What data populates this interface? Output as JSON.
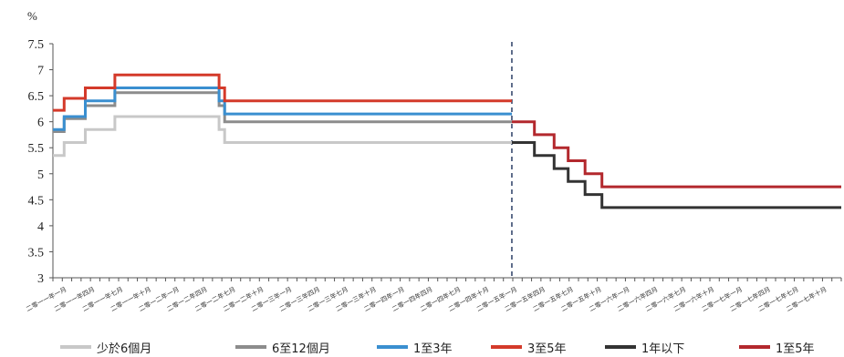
{
  "chart_data": {
    "type": "line",
    "unit_label": "%",
    "ylim": [
      3,
      7.5
    ],
    "yticks": [
      "7.5",
      "7",
      "6.5",
      "6",
      "5.5",
      "5",
      "4.5",
      "4",
      "3.5",
      "3"
    ],
    "x_labels": [
      "二零一一年一月",
      "二零一一年四月",
      "二零一一年七月",
      "二零一一年十月",
      "二零一二年一月",
      "二零一二年四月",
      "二零一二年七月",
      "二零一二年十月",
      "二零一三年一月",
      "二零一三年四月",
      "二零一三年七月",
      "二零一三年十月",
      "二零一四年一月",
      "二零一四年四月",
      "二零一四年七月",
      "二零一四年十月",
      "二零一五年一月",
      "二零一五年四月",
      "二零一五年七月",
      "二零一五年十月",
      "二零一六年一月",
      "二零一六年四月",
      "二零一六年七月",
      "二零一六年十月",
      "二零一七年一月",
      "二零一七年四月",
      "二零一七年七月",
      "二零一七年十月"
    ],
    "x_range": [
      0,
      28
    ],
    "divider_x": 16.3,
    "series": [
      {
        "name": "少於6個月",
        "color": "#c8c8c8",
        "points": [
          [
            0,
            5.35
          ],
          [
            0.4,
            5.35
          ],
          [
            0.4,
            5.6
          ],
          [
            1.15,
            5.6
          ],
          [
            1.15,
            5.85
          ],
          [
            2.2,
            5.85
          ],
          [
            2.2,
            6.1
          ],
          [
            5.9,
            6.1
          ],
          [
            5.9,
            5.85
          ],
          [
            6.1,
            5.85
          ],
          [
            6.1,
            5.6
          ],
          [
            16.3,
            5.6
          ]
        ]
      },
      {
        "name": "6至12個月",
        "color": "#8c8c8c",
        "points": [
          [
            0,
            5.81
          ],
          [
            0.4,
            5.81
          ],
          [
            0.4,
            6.06
          ],
          [
            1.15,
            6.06
          ],
          [
            1.15,
            6.31
          ],
          [
            2.2,
            6.31
          ],
          [
            2.2,
            6.56
          ],
          [
            5.9,
            6.56
          ],
          [
            5.9,
            6.31
          ],
          [
            6.1,
            6.31
          ],
          [
            6.1,
            6.0
          ],
          [
            16.3,
            6.0
          ]
        ]
      },
      {
        "name": "1至3年",
        "color": "#3a8fd0",
        "points": [
          [
            0,
            5.85
          ],
          [
            0.4,
            5.85
          ],
          [
            0.4,
            6.1
          ],
          [
            1.15,
            6.1
          ],
          [
            1.15,
            6.4
          ],
          [
            2.2,
            6.4
          ],
          [
            2.2,
            6.65
          ],
          [
            5.9,
            6.65
          ],
          [
            5.9,
            6.4
          ],
          [
            6.1,
            6.4
          ],
          [
            6.1,
            6.15
          ],
          [
            16.3,
            6.15
          ]
        ]
      },
      {
        "name": "3至5年",
        "color": "#d43a2a",
        "points": [
          [
            0,
            6.22
          ],
          [
            0.4,
            6.22
          ],
          [
            0.4,
            6.45
          ],
          [
            1.15,
            6.45
          ],
          [
            1.15,
            6.65
          ],
          [
            2.2,
            6.65
          ],
          [
            2.2,
            6.9
          ],
          [
            5.9,
            6.9
          ],
          [
            5.9,
            6.65
          ],
          [
            6.1,
            6.65
          ],
          [
            6.1,
            6.4
          ],
          [
            16.3,
            6.4
          ]
        ]
      },
      {
        "name": "1年以下",
        "color": "#333333",
        "points": [
          [
            16.3,
            5.6
          ],
          [
            17.1,
            5.6
          ],
          [
            17.1,
            5.35
          ],
          [
            17.8,
            5.35
          ],
          [
            17.8,
            5.1
          ],
          [
            18.3,
            5.1
          ],
          [
            18.3,
            4.85
          ],
          [
            18.9,
            4.85
          ],
          [
            18.9,
            4.6
          ],
          [
            19.5,
            4.6
          ],
          [
            19.5,
            4.35
          ],
          [
            28,
            4.35
          ]
        ]
      },
      {
        "name": "1至5年",
        "color": "#b3282d",
        "points": [
          [
            16.3,
            6.0
          ],
          [
            17.1,
            6.0
          ],
          [
            17.1,
            5.75
          ],
          [
            17.8,
            5.75
          ],
          [
            17.8,
            5.5
          ],
          [
            18.3,
            5.5
          ],
          [
            18.3,
            5.25
          ],
          [
            18.9,
            5.25
          ],
          [
            18.9,
            5.0
          ],
          [
            19.5,
            5.0
          ],
          [
            19.5,
            4.75
          ],
          [
            28,
            4.75
          ]
        ]
      }
    ]
  }
}
